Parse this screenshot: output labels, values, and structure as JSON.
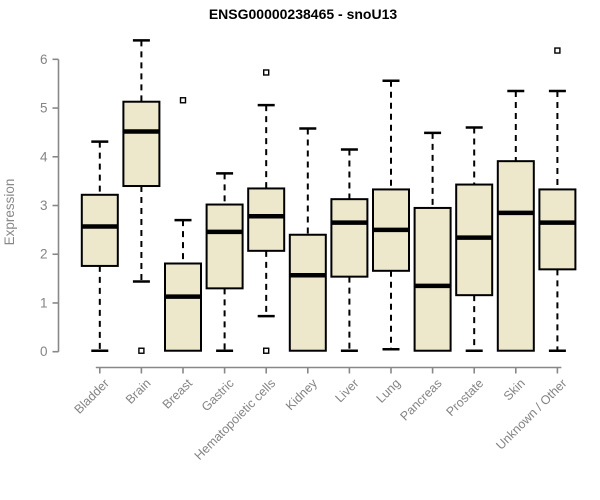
{
  "chart_data": {
    "type": "boxplot",
    "title": "ENSG00000238465 - snoU13",
    "xlabel": "",
    "ylabel": "Expression",
    "ylim": [
      0,
      6
    ],
    "yticks": [
      0,
      1,
      2,
      3,
      4,
      5,
      6
    ],
    "grid": false,
    "legend": "none",
    "categories": [
      "Bladder",
      "Brain",
      "Breast",
      "Gastric",
      "Hematopoietic cells",
      "Kidney",
      "Liver",
      "Lung",
      "Pancreas",
      "Prostate",
      "Skin",
      "Unknown / Other"
    ],
    "series": [
      {
        "label": "Bladder",
        "min": 0.02,
        "q1": 1.76,
        "median": 2.57,
        "q3": 3.22,
        "max": 4.31,
        "outliers": []
      },
      {
        "label": "Brain",
        "min": 1.44,
        "q1": 3.4,
        "median": 4.52,
        "q3": 5.13,
        "max": 6.39,
        "outliers": [
          0.02
        ]
      },
      {
        "label": "Breast",
        "min": 0.02,
        "q1": 0.02,
        "median": 1.13,
        "q3": 1.81,
        "max": 2.7,
        "outliers": [
          5.16
        ]
      },
      {
        "label": "Gastric",
        "min": 0.02,
        "q1": 1.3,
        "median": 2.46,
        "q3": 3.02,
        "max": 3.66,
        "outliers": []
      },
      {
        "label": "Hematopoietic cells",
        "min": 0.73,
        "q1": 2.07,
        "median": 2.78,
        "q3": 3.35,
        "max": 5.06,
        "outliers": [
          5.73,
          0.02
        ]
      },
      {
        "label": "Kidney",
        "min": 0.02,
        "q1": 0.02,
        "median": 1.57,
        "q3": 2.4,
        "max": 4.58,
        "outliers": []
      },
      {
        "label": "Liver",
        "min": 0.02,
        "q1": 1.54,
        "median": 2.65,
        "q3": 3.13,
        "max": 4.15,
        "outliers": []
      },
      {
        "label": "Lung",
        "min": 0.05,
        "q1": 1.66,
        "median": 2.5,
        "q3": 3.33,
        "max": 5.56,
        "outliers": []
      },
      {
        "label": "Pancreas",
        "min": 0.02,
        "q1": 0.02,
        "median": 1.35,
        "q3": 2.95,
        "max": 4.49,
        "outliers": []
      },
      {
        "label": "Prostate",
        "min": 0.02,
        "q1": 1.16,
        "median": 2.34,
        "q3": 3.43,
        "max": 4.6,
        "outliers": []
      },
      {
        "label": "Skin",
        "min": 0.02,
        "q1": 0.02,
        "median": 2.85,
        "q3": 3.91,
        "max": 5.35,
        "outliers": []
      },
      {
        "label": "Unknown / Other",
        "min": 0.02,
        "q1": 1.69,
        "median": 2.65,
        "q3": 3.33,
        "max": 5.35,
        "outliers": [
          6.18
        ]
      }
    ],
    "colors": {
      "box_fill": "#EDE8CC",
      "box_stroke": "#000000",
      "median": "#000000",
      "whisker": "#000000",
      "outlier_fill": "#FFFFFF",
      "outlier_stroke": "#000000",
      "axis": "#888888",
      "tick_label": "#848484",
      "title": "#000000",
      "background": "#FFFFFF"
    }
  }
}
